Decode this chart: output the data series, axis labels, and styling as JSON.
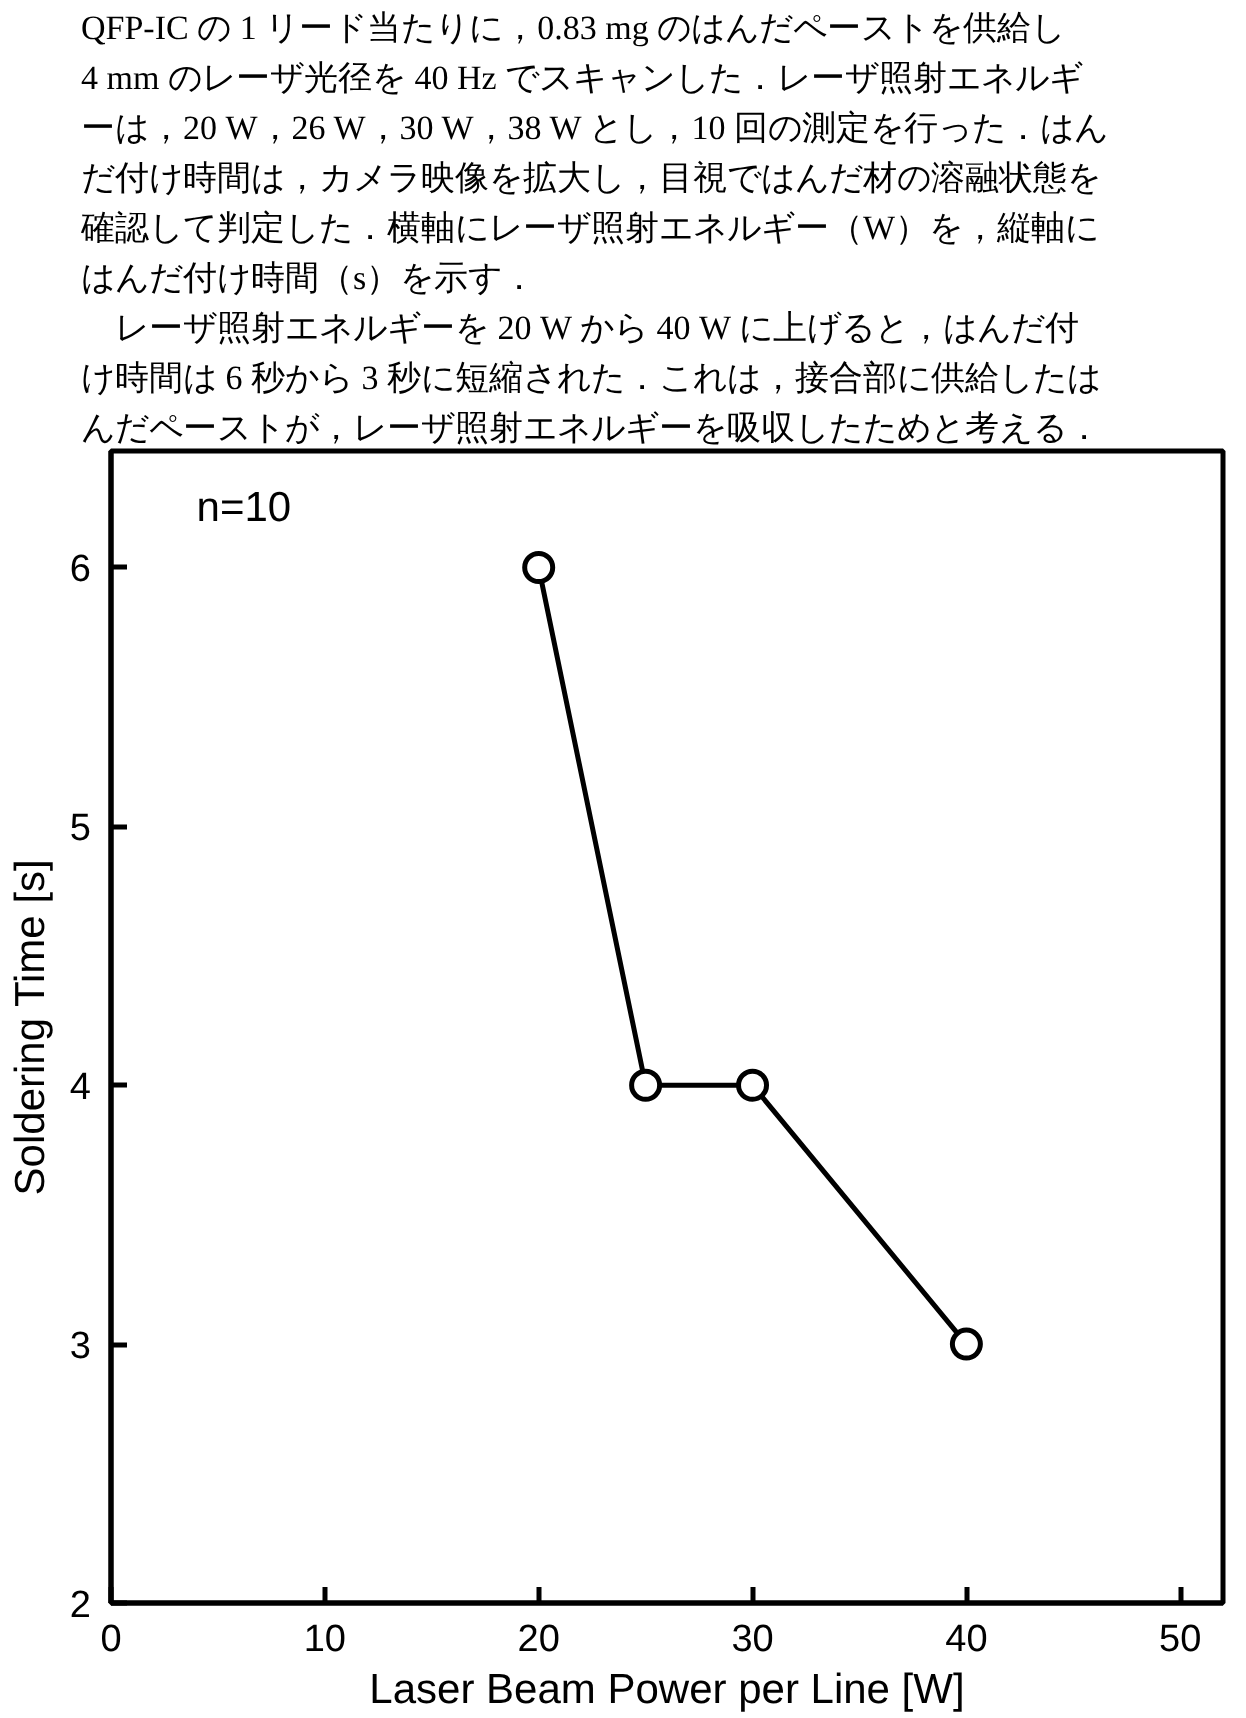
{
  "chart_data": {
    "type": "line",
    "xlabel": "Laser Beam Power per Line [W]",
    "ylabel": "Soldering Time [s]",
    "annotations": [
      "QFP-IC の 1 リード当たりに，0.83 mg のはんだペーストを供給し",
      "4 mm のレーザ光径を 40 Hz でスキャンした．レーザ照射エネルギ",
      "ーは，20 W，26 W，30 W，38 W とし，10 回の測定を行った．はん",
      "だ付け時間は，カメラ映像を拡大し，目視ではんだ材の溶融状態を",
      "確認して判定した．横軸にレーザ照射エネルギー（W）を，縦軸に",
      "はんだ付け時間（s）を示す．",
      "　レーザ照射エネルギーを 20 W から 40 W に上げると，はんだ付",
      "け時間は 6 秒から 3 秒に短縮された．これは，接合部に供給したは",
      "んだペーストが，レーザ照射エネルギーを吸収したためと考える．",
      "n=10"
    ],
    "x": [
      20,
      25,
      30,
      40
    ],
    "series": [
      {
        "color": "#000000",
        "values": [
          6,
          4,
          4,
          3
        ]
      }
    ],
    "xlim": [
      0,
      52
    ],
    "xticks": [
      0,
      10,
      20,
      30,
      40,
      50
    ],
    "ylim": [
      2,
      6.45
    ],
    "yticks": [
      2,
      3,
      4,
      5,
      6
    ],
    "grid": false,
    "marker": "circle",
    "line_style": "solid"
  }
}
